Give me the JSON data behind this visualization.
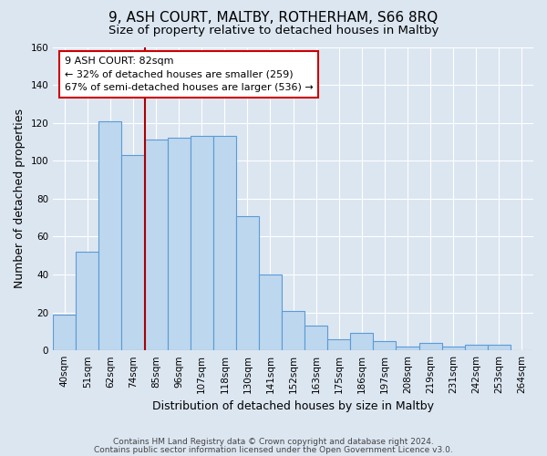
{
  "title": "9, ASH COURT, MALTBY, ROTHERHAM, S66 8RQ",
  "subtitle": "Size of property relative to detached houses in Maltby",
  "xlabel": "Distribution of detached houses by size in Maltby",
  "ylabel": "Number of detached properties",
  "footer_line1": "Contains HM Land Registry data © Crown copyright and database right 2024.",
  "footer_line2": "Contains public sector information licensed under the Open Government Licence v3.0.",
  "bar_labels": [
    "40sqm",
    "51sqm",
    "62sqm",
    "74sqm",
    "85sqm",
    "96sqm",
    "107sqm",
    "118sqm",
    "130sqm",
    "141sqm",
    "152sqm",
    "163sqm",
    "175sqm",
    "186sqm",
    "197sqm",
    "208sqm",
    "219sqm",
    "231sqm",
    "242sqm",
    "253sqm",
    "264sqm"
  ],
  "bar_values": [
    19,
    52,
    121,
    103,
    111,
    112,
    113,
    113,
    71,
    40,
    21,
    13,
    6,
    9,
    5,
    2,
    4,
    2,
    3,
    3,
    0
  ],
  "bar_color": "#bdd7ee",
  "bar_edge_color": "#5b9bd5",
  "annotation_title": "9 ASH COURT: 82sqm",
  "annotation_line1": "← 32% of detached houses are smaller (259)",
  "annotation_line2": "67% of semi-detached houses are larger (536) →",
  "annotation_box_color": "#ffffff",
  "annotation_box_edge_color": "#cc0000",
  "vline_color": "#aa0000",
  "ylim": [
    0,
    160
  ],
  "yticks": [
    0,
    20,
    40,
    60,
    80,
    100,
    120,
    140,
    160
  ],
  "bg_color": "#dce6f1",
  "plot_bg_color": "#dce6f1",
  "grid_color": "#ffffff",
  "title_fontsize": 11,
  "subtitle_fontsize": 9.5,
  "axis_label_fontsize": 9,
  "tick_fontsize": 7.5,
  "annotation_fontsize": 8,
  "footer_fontsize": 6.5
}
